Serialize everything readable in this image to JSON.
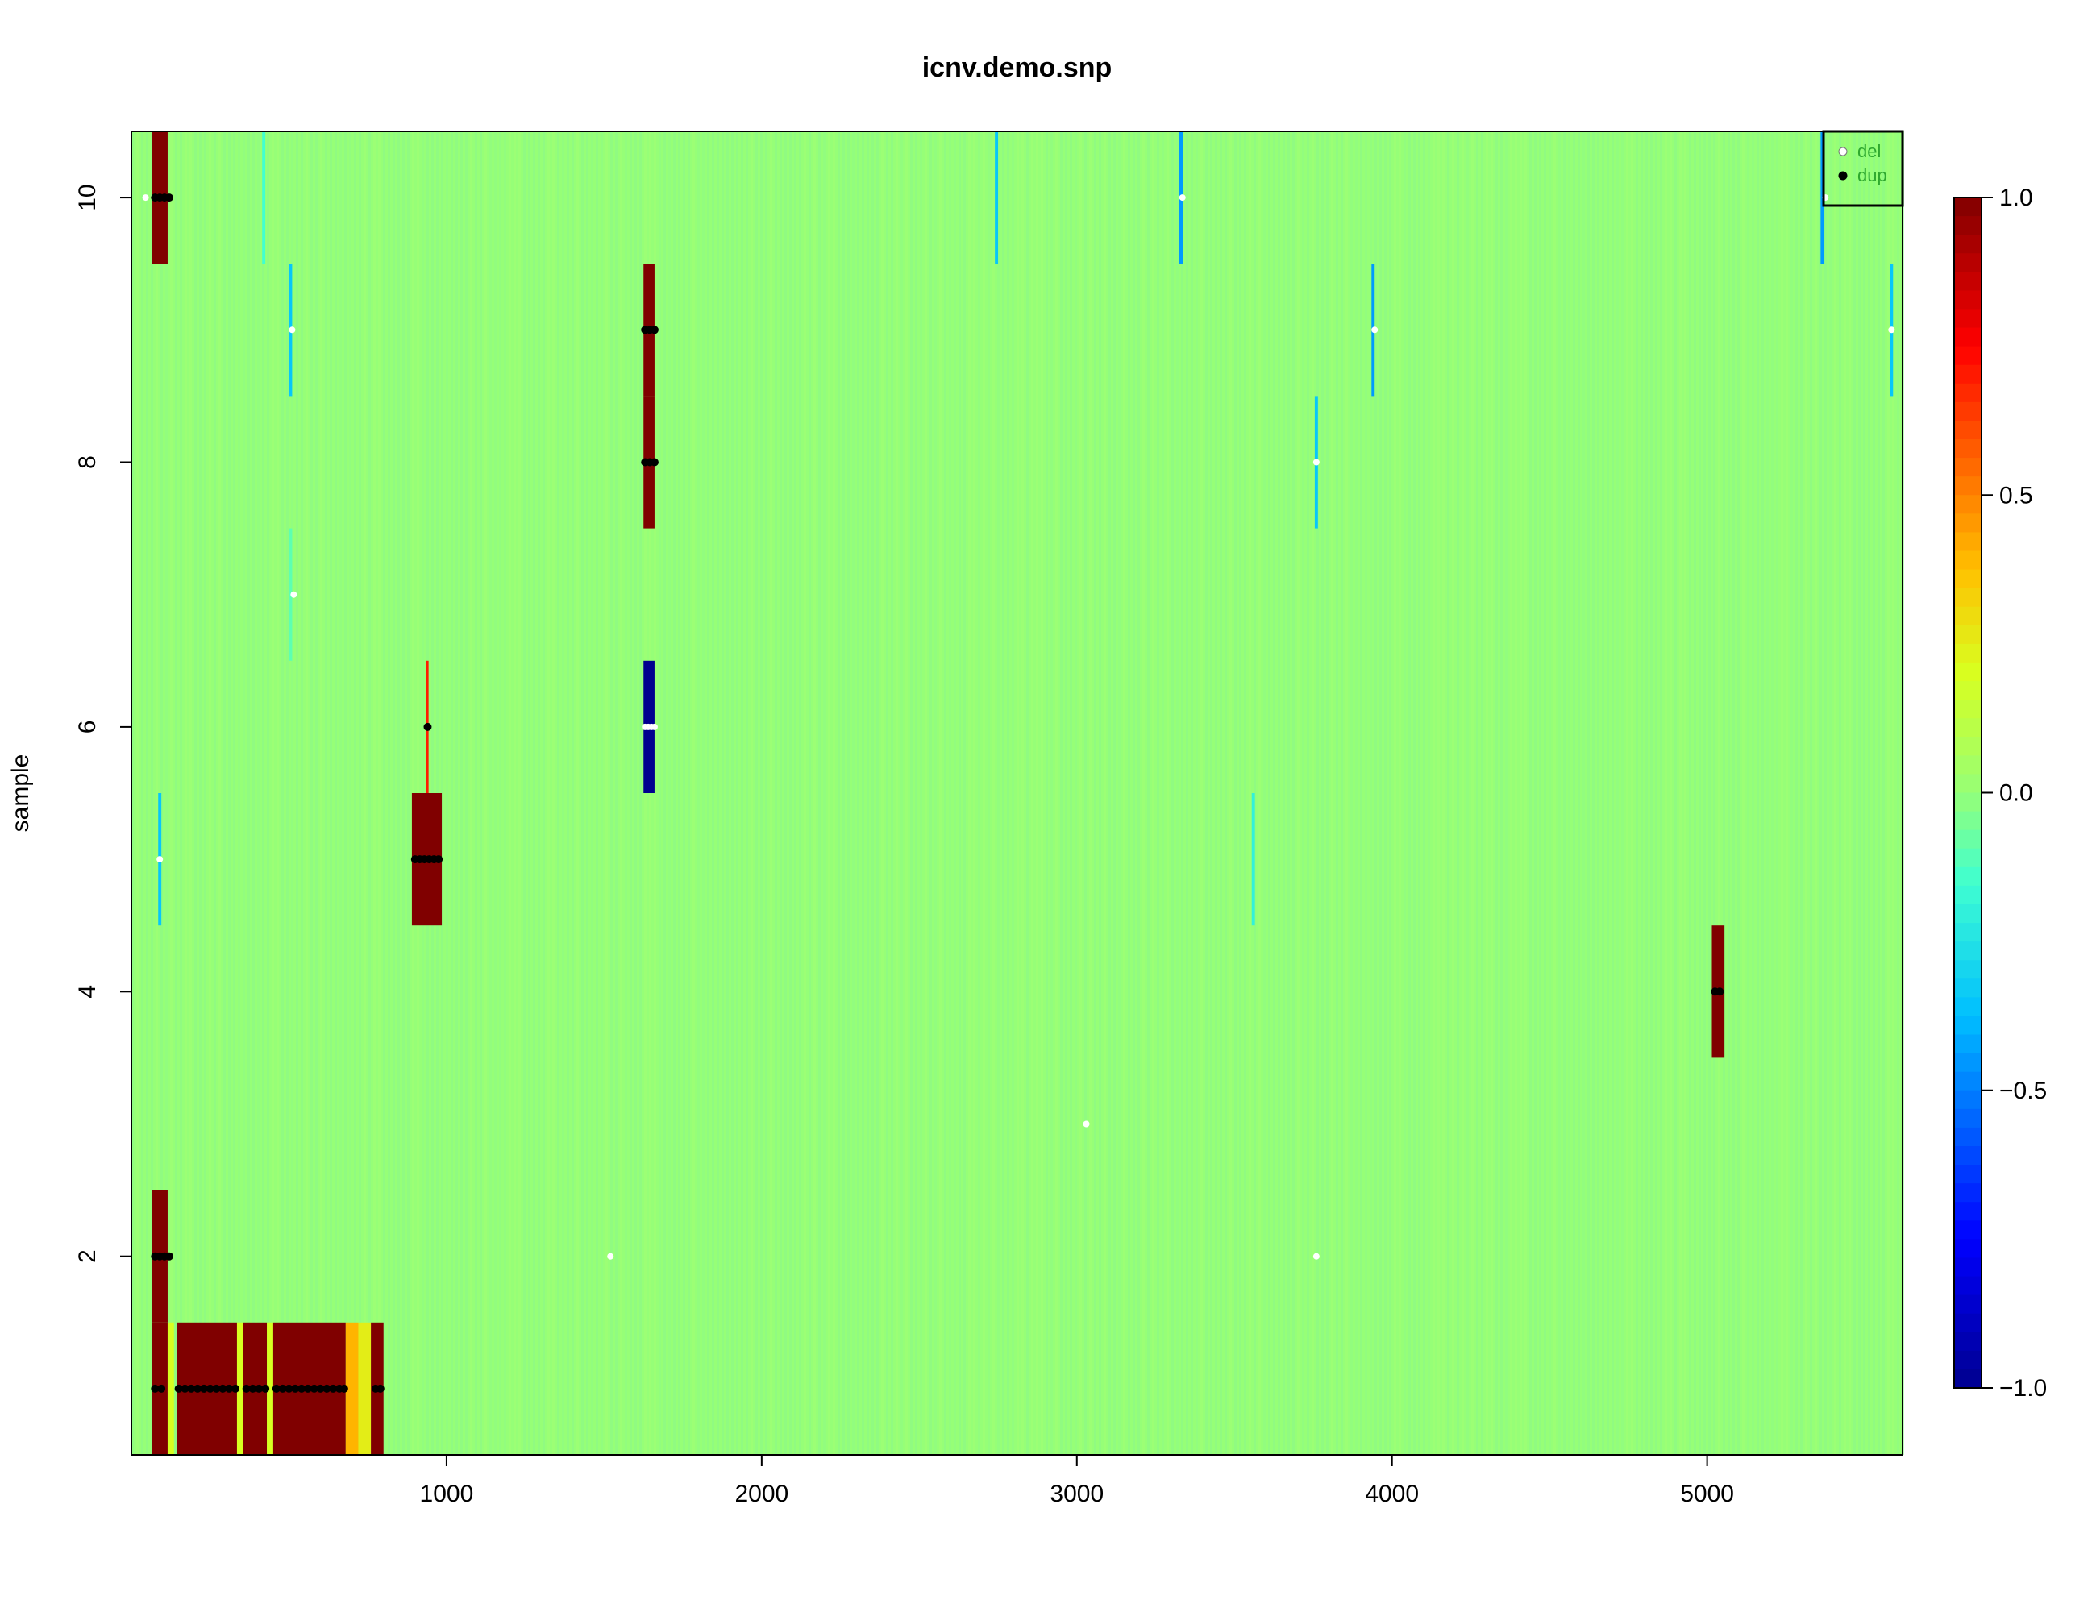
{
  "chart_data": {
    "type": "heatmap",
    "title": "icnv.demo.snp",
    "xlabel": "",
    "ylabel": "sample",
    "xlim": [
      0,
      5620
    ],
    "ylim": [
      0.5,
      10.5
    ],
    "x_ticks": [
      1000,
      2000,
      3000,
      4000,
      5000
    ],
    "y_ticks": [
      2,
      4,
      6,
      8,
      10
    ],
    "background_value": 0.0,
    "color_scale": {
      "range": [
        -1.0,
        1.0
      ],
      "ticks": [
        1.0,
        0.5,
        0.0,
        -0.5,
        -1.0
      ],
      "tick_labels": [
        "1.0",
        "0.5",
        "0.0",
        "−0.5",
        "−1.0"
      ],
      "stops": [
        {
          "value": -1.0,
          "color": "#00008f"
        },
        {
          "value": -0.75,
          "color": "#0000ff"
        },
        {
          "value": -0.375,
          "color": "#00bfff"
        },
        {
          "value": -0.15,
          "color": "#40ffd0"
        },
        {
          "value": 0.0,
          "color": "#96ff77"
        },
        {
          "value": 0.2,
          "color": "#d8ff20"
        },
        {
          "value": 0.375,
          "color": "#ffc000"
        },
        {
          "value": 0.6,
          "color": "#ff5000"
        },
        {
          "value": 0.75,
          "color": "#ff0000"
        },
        {
          "value": 1.0,
          "color": "#800000"
        }
      ]
    },
    "segments": [
      {
        "sample": 10,
        "x0": 65,
        "x1": 115,
        "value": 1.0
      },
      {
        "sample": 10,
        "x0": 415,
        "x1": 425,
        "value": -0.15
      },
      {
        "sample": 10,
        "x0": 2740,
        "x1": 2750,
        "value": -0.35
      },
      {
        "sample": 10,
        "x0": 3325,
        "x1": 3338,
        "value": -0.45
      },
      {
        "sample": 10,
        "x0": 5360,
        "x1": 5372,
        "value": -0.45
      },
      {
        "sample": 9,
        "x0": 500,
        "x1": 510,
        "value": -0.35
      },
      {
        "sample": 9,
        "x0": 1625,
        "x1": 1660,
        "value": 1.0
      },
      {
        "sample": 9,
        "x0": 3935,
        "x1": 3945,
        "value": -0.45
      },
      {
        "sample": 9,
        "x0": 5580,
        "x1": 5590,
        "value": -0.35
      },
      {
        "sample": 8,
        "x0": 1625,
        "x1": 1660,
        "value": 1.0
      },
      {
        "sample": 8,
        "x0": 3755,
        "x1": 3765,
        "value": -0.35
      },
      {
        "sample": 7,
        "x0": 500,
        "x1": 510,
        "value": -0.1
      },
      {
        "sample": 6,
        "x0": 935,
        "x1": 943,
        "value": 0.7
      },
      {
        "sample": 6,
        "x0": 1625,
        "x1": 1660,
        "value": -1.0
      },
      {
        "sample": 5,
        "x0": 85,
        "x1": 95,
        "value": -0.35
      },
      {
        "sample": 5,
        "x0": 890,
        "x1": 985,
        "value": 1.0
      },
      {
        "sample": 5,
        "x0": 3555,
        "x1": 3565,
        "value": -0.2
      },
      {
        "sample": 4,
        "x0": 5015,
        "x1": 5055,
        "value": 1.0
      },
      {
        "sample": 2,
        "x0": 65,
        "x1": 115,
        "value": 1.0
      },
      {
        "sample": 1,
        "x0": 65,
        "x1": 115,
        "value": 1.0
      },
      {
        "sample": 1,
        "x0": 115,
        "x1": 135,
        "value": 0.2
      },
      {
        "sample": 1,
        "x0": 145,
        "x1": 335,
        "value": 1.0
      },
      {
        "sample": 1,
        "x0": 335,
        "x1": 355,
        "value": 0.2
      },
      {
        "sample": 1,
        "x0": 355,
        "x1": 430,
        "value": 1.0
      },
      {
        "sample": 1,
        "x0": 430,
        "x1": 450,
        "value": 0.2
      },
      {
        "sample": 1,
        "x0": 450,
        "x1": 680,
        "value": 1.0
      },
      {
        "sample": 1,
        "x0": 680,
        "x1": 720,
        "value": 0.4
      },
      {
        "sample": 1,
        "x0": 720,
        "x1": 760,
        "value": 0.25
      },
      {
        "sample": 1,
        "x0": 760,
        "x1": 800,
        "value": 1.0
      }
    ],
    "legend": {
      "position": "top-right",
      "entries": [
        {
          "label": "del",
          "marker": "white-dot"
        },
        {
          "label": "dup",
          "marker": "black-dot"
        }
      ]
    },
    "points": {
      "del": [
        {
          "sample": 10,
          "x": 45
        },
        {
          "sample": 10,
          "x": 3335
        },
        {
          "sample": 10,
          "x": 5375
        },
        {
          "sample": 9,
          "x": 510
        },
        {
          "sample": 9,
          "x": 3945
        },
        {
          "sample": 9,
          "x": 5585
        },
        {
          "sample": 8,
          "x": 3760
        },
        {
          "sample": 7,
          "x": 515
        },
        {
          "sample": 6,
          "x": 1630
        },
        {
          "sample": 6,
          "x": 1640
        },
        {
          "sample": 6,
          "x": 1650
        },
        {
          "sample": 6,
          "x": 1660
        },
        {
          "sample": 5,
          "x": 90
        },
        {
          "sample": 3,
          "x": 3030
        },
        {
          "sample": 2,
          "x": 1520
        },
        {
          "sample": 2,
          "x": 3760
        }
      ],
      "dup": [
        {
          "sample": 10,
          "x": 75
        },
        {
          "sample": 10,
          "x": 90
        },
        {
          "sample": 10,
          "x": 105
        },
        {
          "sample": 10,
          "x": 120
        },
        {
          "sample": 9,
          "x": 1630
        },
        {
          "sample": 9,
          "x": 1645
        },
        {
          "sample": 9,
          "x": 1660
        },
        {
          "sample": 8,
          "x": 1630
        },
        {
          "sample": 8,
          "x": 1645
        },
        {
          "sample": 8,
          "x": 1660
        },
        {
          "sample": 6,
          "x": 940
        },
        {
          "sample": 5,
          "x": 900
        },
        {
          "sample": 5,
          "x": 915
        },
        {
          "sample": 5,
          "x": 930
        },
        {
          "sample": 5,
          "x": 945
        },
        {
          "sample": 5,
          "x": 960
        },
        {
          "sample": 5,
          "x": 975
        },
        {
          "sample": 4,
          "x": 5025
        },
        {
          "sample": 4,
          "x": 5040
        },
        {
          "sample": 2,
          "x": 75
        },
        {
          "sample": 2,
          "x": 90
        },
        {
          "sample": 2,
          "x": 105
        },
        {
          "sample": 2,
          "x": 120
        },
        {
          "sample": 1,
          "x": 75
        },
        {
          "sample": 1,
          "x": 95
        },
        {
          "sample": 1,
          "x": 150
        },
        {
          "sample": 1,
          "x": 170
        },
        {
          "sample": 1,
          "x": 190
        },
        {
          "sample": 1,
          "x": 210
        },
        {
          "sample": 1,
          "x": 230
        },
        {
          "sample": 1,
          "x": 250
        },
        {
          "sample": 1,
          "x": 270
        },
        {
          "sample": 1,
          "x": 290
        },
        {
          "sample": 1,
          "x": 310
        },
        {
          "sample": 1,
          "x": 330
        },
        {
          "sample": 1,
          "x": 365
        },
        {
          "sample": 1,
          "x": 385
        },
        {
          "sample": 1,
          "x": 405
        },
        {
          "sample": 1,
          "x": 425
        },
        {
          "sample": 1,
          "x": 460
        },
        {
          "sample": 1,
          "x": 480
        },
        {
          "sample": 1,
          "x": 500
        },
        {
          "sample": 1,
          "x": 520
        },
        {
          "sample": 1,
          "x": 540
        },
        {
          "sample": 1,
          "x": 560
        },
        {
          "sample": 1,
          "x": 580
        },
        {
          "sample": 1,
          "x": 600
        },
        {
          "sample": 1,
          "x": 620
        },
        {
          "sample": 1,
          "x": 640
        },
        {
          "sample": 1,
          "x": 660
        },
        {
          "sample": 1,
          "x": 675
        },
        {
          "sample": 1,
          "x": 775
        },
        {
          "sample": 1,
          "x": 790
        }
      ]
    }
  }
}
